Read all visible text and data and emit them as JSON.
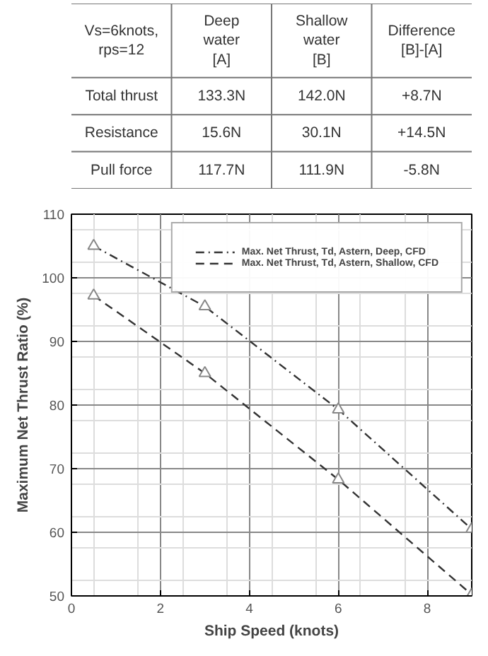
{
  "chart_data": [
    {
      "type": "other",
      "categories": [
        "Vs=6knots,\nrps=12",
        "Deep\nwater\n[A]",
        "Shallow\nwater\n[B]",
        "Difference\n[B]-[A]"
      ],
      "y_categories": [
        "Total thrust",
        "Resistance",
        "Pull force"
      ],
      "cell_labels": [
        [
          "133.3N",
          "142.0N",
          "+8.7N"
        ],
        [
          "15.6N",
          "30.1N",
          "+14.5N"
        ],
        [
          "117.7N",
          "111.9N",
          "-5.8N"
        ]
      ]
    },
    {
      "type": "line",
      "xlabel": "Ship Speed (knots)",
      "ylabel": "Maximum Net Thrust Ratio (%)",
      "xlim": [
        0,
        9
      ],
      "xticks": [
        0,
        2,
        4,
        6,
        8
      ],
      "ylim": [
        50,
        110
      ],
      "yticks": [
        50,
        60,
        70,
        80,
        90,
        100,
        110
      ],
      "grid": true,
      "legend": "top right",
      "series": [
        {
          "name": "Max. Net Thrust, Td, Astern, Deep, CFD",
          "color": "#333333",
          "marker": "triangle",
          "line_style": "dashdot",
          "x": [
            0.5,
            3,
            6,
            9
          ],
          "values": [
            105,
            95.5,
            79.3,
            60.5
          ]
        },
        {
          "name": "Max. Net Thrust, Td, Astern, Shallow, CFD",
          "color": "#333333",
          "marker": "triangle",
          "line_style": "dashed",
          "x": [
            0.5,
            3,
            6,
            9
          ],
          "values": [
            97.2,
            85,
            68.3,
            50.2
          ]
        }
      ]
    }
  ]
}
